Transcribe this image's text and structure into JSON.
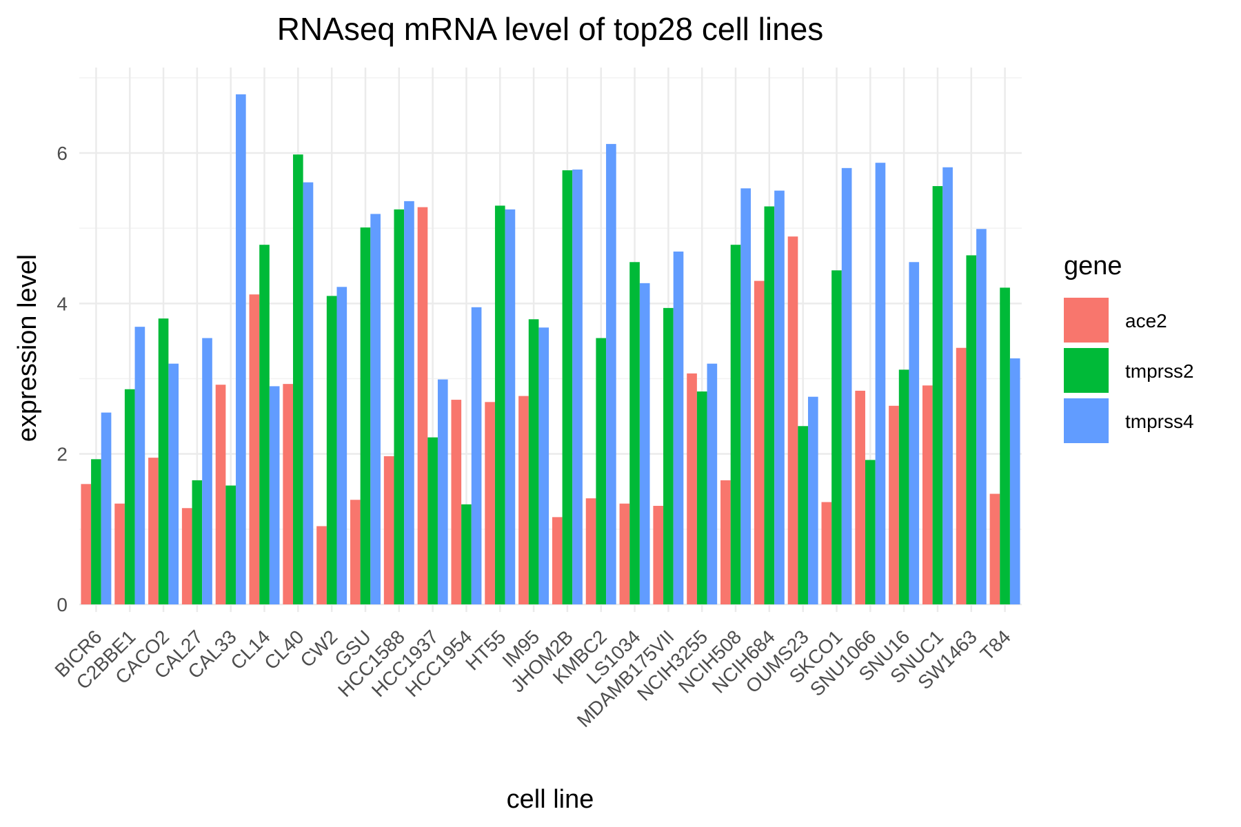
{
  "chart_data": {
    "type": "bar",
    "title": "RNAseq mRNA level of top28 cell lines",
    "xlabel": "cell line",
    "ylabel": "expression level",
    "ylim": [
      0,
      7.1
    ],
    "yticks": [
      0,
      2,
      4,
      6
    ],
    "grid": true,
    "legend_position": "right",
    "legend_title": "gene",
    "categories": [
      "BICR6",
      "C2BBE1",
      "CACO2",
      "CAL27",
      "CAL33",
      "CL14",
      "CL40",
      "CW2",
      "GSU",
      "HCC1588",
      "HCC1937",
      "HCC1954",
      "HT55",
      "IM95",
      "JHOM2B",
      "KMBC2",
      "LS1034",
      "MDAMB175VII",
      "NCIH3255",
      "NCIH508",
      "NCIH684",
      "OUMS23",
      "SKCO1",
      "SNU1066",
      "SNU16",
      "SNUC1",
      "SW1463",
      "T84"
    ],
    "series": [
      {
        "name": "ace2",
        "color": "#F8766D",
        "values": [
          1.6,
          1.34,
          1.95,
          1.28,
          2.92,
          4.12,
          2.93,
          1.04,
          1.39,
          1.97,
          5.28,
          2.72,
          2.69,
          2.77,
          1.16,
          1.41,
          1.34,
          1.31,
          3.07,
          1.65,
          4.3,
          4.89,
          1.36,
          2.84,
          2.64,
          2.91,
          3.41,
          1.47
        ]
      },
      {
        "name": "tmprss2",
        "color": "#00BA38",
        "values": [
          1.93,
          2.86,
          3.8,
          1.65,
          1.58,
          4.78,
          5.98,
          4.1,
          5.01,
          5.25,
          2.22,
          1.33,
          5.3,
          3.79,
          5.77,
          3.54,
          4.55,
          3.94,
          2.83,
          4.78,
          5.29,
          2.37,
          4.44,
          1.92,
          3.12,
          5.56,
          4.64,
          4.21
        ]
      },
      {
        "name": "tmprss4",
        "color": "#619CFF",
        "values": [
          2.55,
          3.69,
          3.2,
          3.54,
          6.78,
          2.9,
          5.61,
          4.22,
          5.19,
          5.36,
          2.99,
          3.95,
          5.25,
          3.68,
          5.78,
          6.12,
          4.27,
          4.69,
          3.2,
          5.53,
          5.5,
          2.76,
          5.8,
          5.87,
          4.55,
          5.81,
          4.99,
          3.27
        ]
      }
    ]
  }
}
